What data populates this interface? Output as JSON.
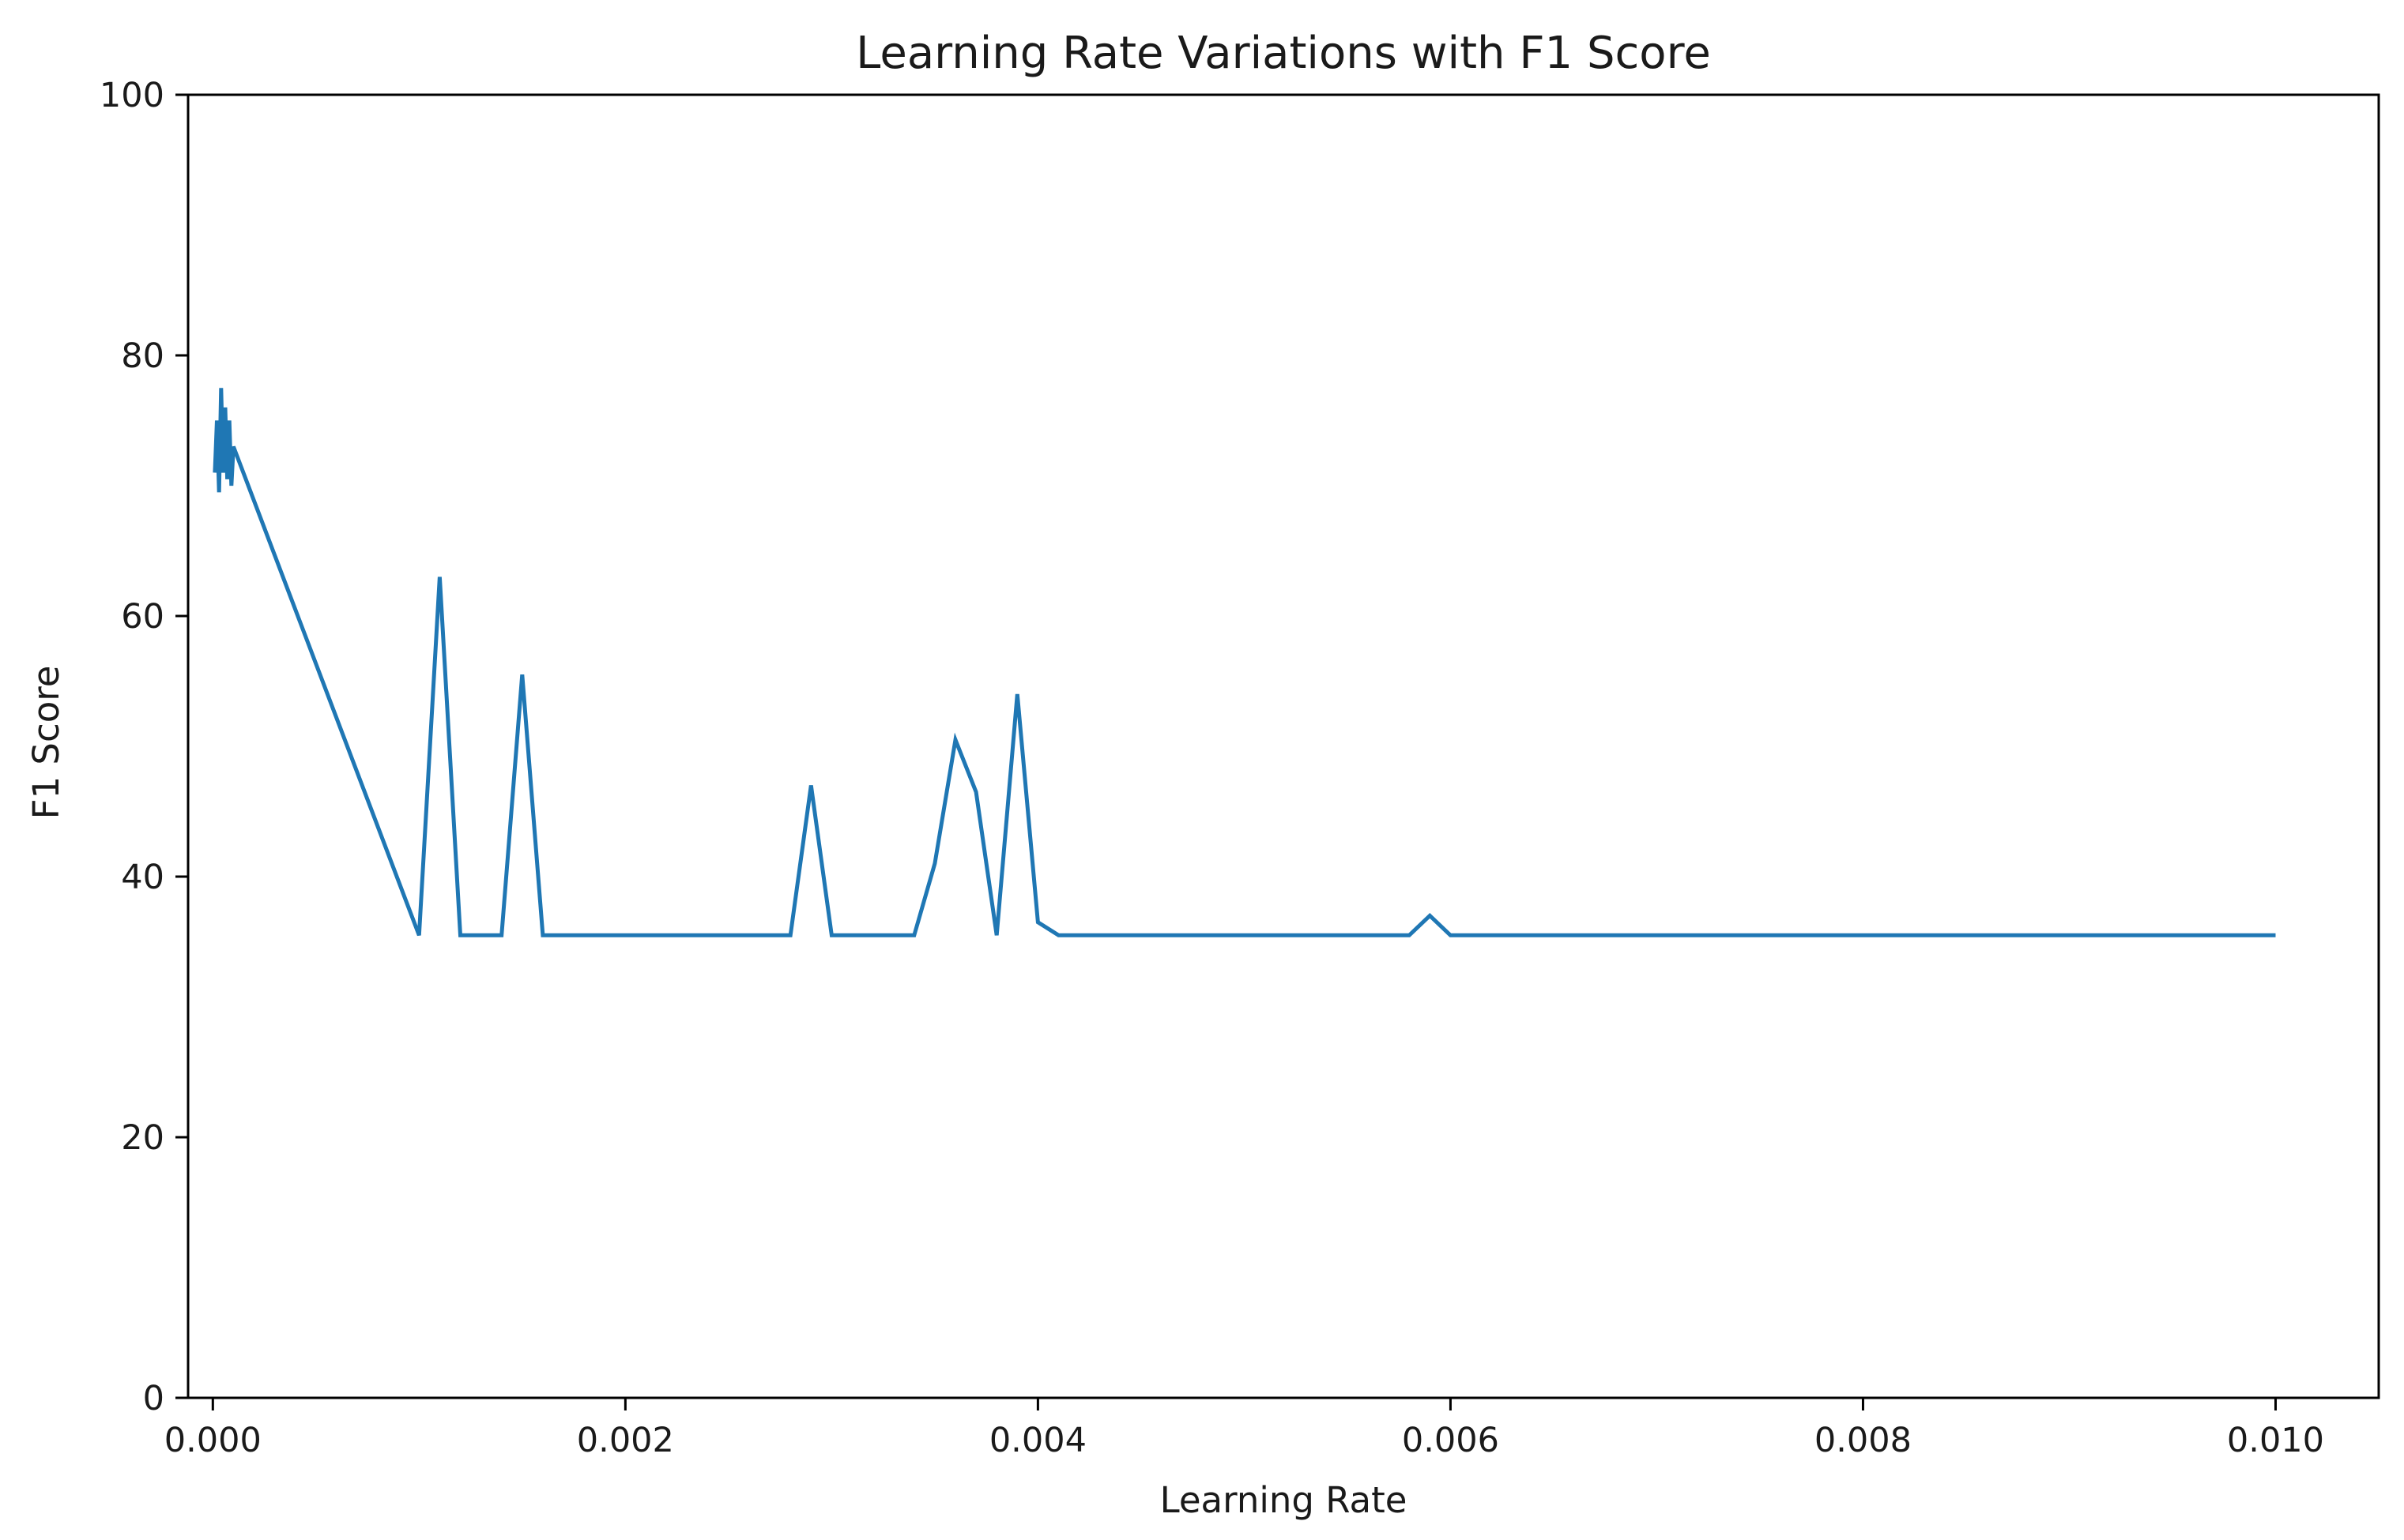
{
  "chart_data": {
    "type": "line",
    "title": "Learning Rate Variations with F1 Score",
    "xlabel": "Learning Rate",
    "ylabel": "F1 Score",
    "xlim": [
      -0.00012,
      0.0105
    ],
    "ylim": [
      0,
      100
    ],
    "grid": false,
    "legend": "none",
    "x_ticks": [
      "0.000",
      "0.002",
      "0.004",
      "0.006",
      "0.008",
      "0.010"
    ],
    "x_tick_values": [
      0,
      0.002,
      0.004,
      0.006,
      0.008,
      0.01
    ],
    "y_ticks": [
      "0",
      "20",
      "40",
      "60",
      "80",
      "100"
    ],
    "y_tick_values": [
      0,
      20,
      40,
      60,
      80,
      100
    ],
    "series": [
      {
        "color": "#1f77b4",
        "x": [
          1e-05,
          2e-05,
          3e-05,
          4e-05,
          5e-05,
          6e-05,
          7e-05,
          8e-05,
          9e-05,
          0.0001,
          0.001,
          0.0011,
          0.0012,
          0.0014,
          0.0015,
          0.0016,
          0.0018,
          0.0028,
          0.0029,
          0.003,
          0.0034,
          0.0035,
          0.0036,
          0.0037,
          0.0038,
          0.0039,
          0.004,
          0.0041,
          0.0058,
          0.0059,
          0.006,
          0.008,
          0.01
        ],
        "y": [
          71,
          75,
          69.5,
          77.5,
          71,
          76,
          70.5,
          75,
          70,
          73,
          35.5,
          63,
          35.5,
          35.5,
          55.5,
          35.5,
          35.5,
          35.5,
          47,
          35.5,
          35.5,
          41,
          50.5,
          46.5,
          35.5,
          54,
          36.5,
          35.5,
          35.5,
          37,
          35.5,
          35.5,
          35.5
        ]
      }
    ]
  }
}
